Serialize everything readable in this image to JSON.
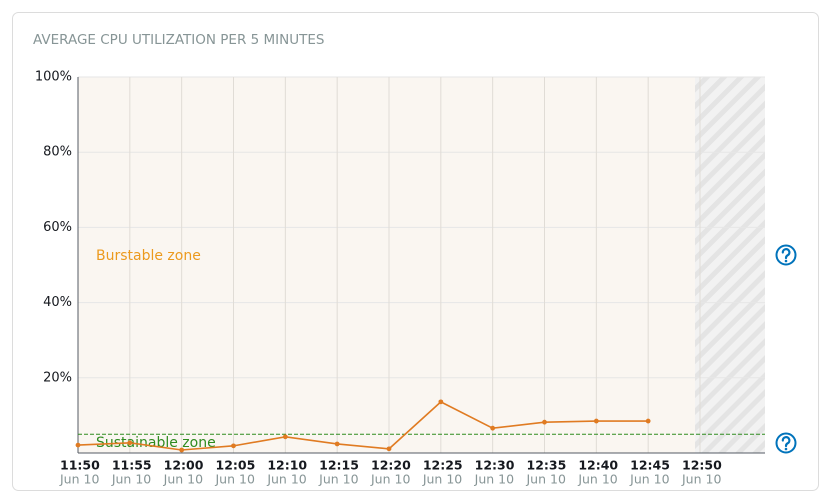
{
  "chart_data": {
    "type": "line",
    "title": "AVERAGE CPU UTILIZATION PER 5 MINUTES",
    "categories": [
      "11:50",
      "11:55",
      "12:00",
      "12:05",
      "12:10",
      "12:15",
      "12:20",
      "12:25",
      "12:30",
      "12:35",
      "12:40",
      "12:45",
      "12:50"
    ],
    "dates": [
      "Jun 10",
      "Jun 10",
      "Jun 10",
      "Jun 10",
      "Jun 10",
      "Jun 10",
      "Jun 10",
      "Jun 10",
      "Jun 10",
      "Jun 10",
      "Jun 10",
      "Jun 10",
      "Jun 10"
    ],
    "series": [
      {
        "name": "CPU utilization",
        "color": "#e07b22",
        "values": [
          2.1,
          2.7,
          0.8,
          1.9,
          4.3,
          2.4,
          1.1,
          13.6,
          6.6,
          8.2,
          8.5,
          8.5,
          null
        ]
      }
    ],
    "ylim": [
      0,
      100
    ],
    "yticks": [
      {
        "value": 20,
        "label": "20%"
      },
      {
        "value": 40,
        "label": "40%"
      },
      {
        "value": 60,
        "label": "60%"
      },
      {
        "value": 80,
        "label": "80%"
      },
      {
        "value": 100,
        "label": "100%"
      }
    ],
    "grid": true,
    "threshold": 5,
    "threshold_color": "#2e8b1f",
    "zones": [
      {
        "label": "Burstable zone",
        "color": "#ec9a1e"
      },
      {
        "label": "Sustainable zone",
        "color": "#2e8b1f"
      }
    ]
  }
}
